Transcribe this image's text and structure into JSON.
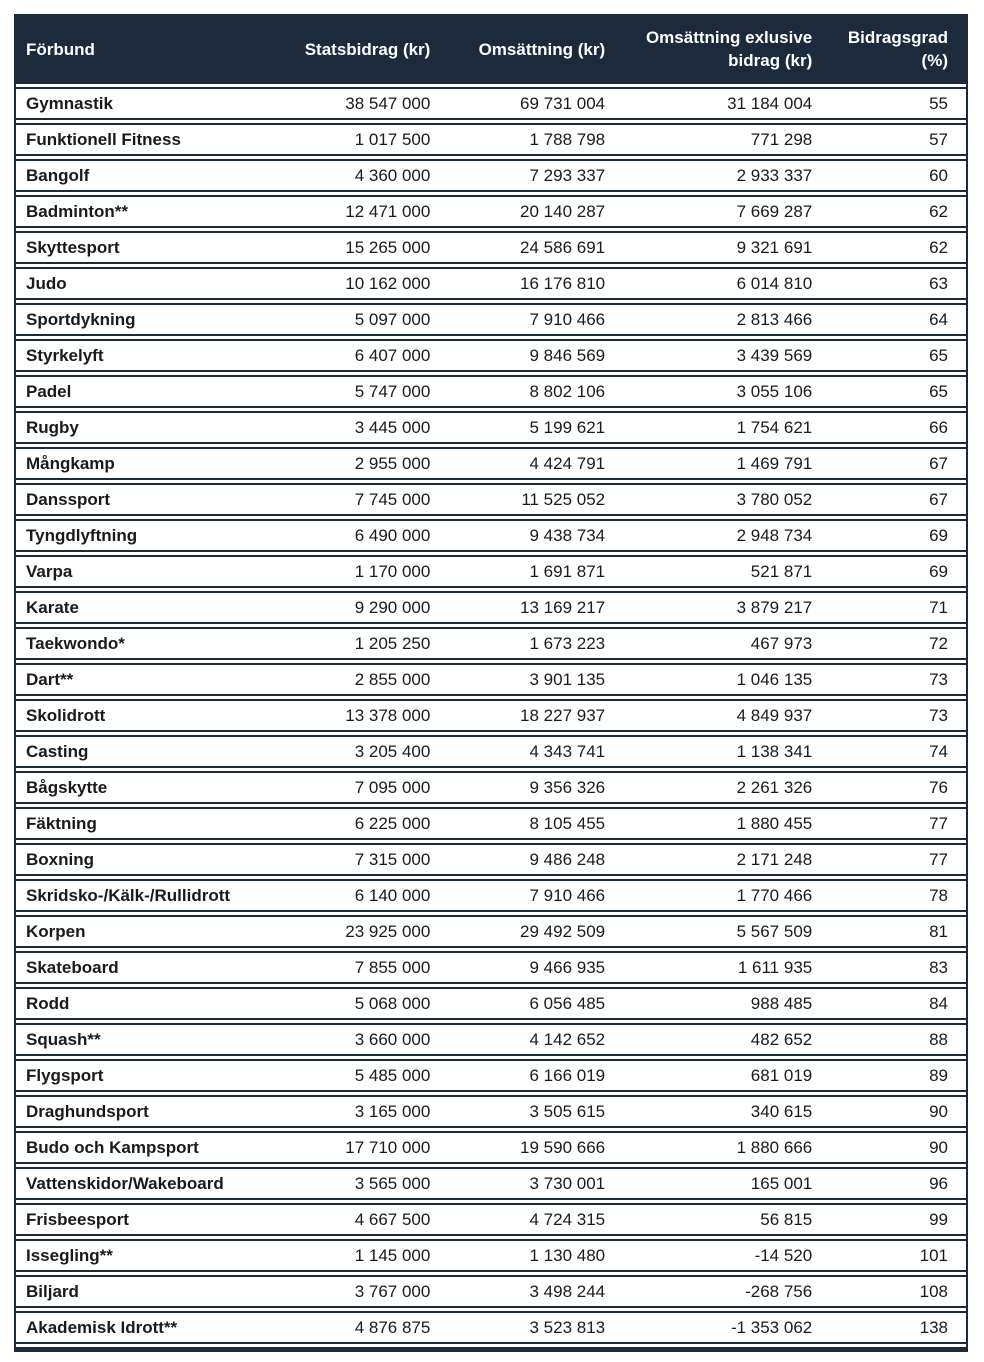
{
  "colors": {
    "header_bg": "#1c2a3c",
    "border": "#1c2a3c",
    "row_bg": "#ffffff",
    "header_text": "#ffffff",
    "body_text": "#1a1a1a"
  },
  "table": {
    "columns": [
      {
        "id": "forbund",
        "label": "Förbund"
      },
      {
        "id": "statsbidrag",
        "label": "Statsbidrag (kr)"
      },
      {
        "id": "omsattning",
        "label": "Omsättning (kr)"
      },
      {
        "id": "omsattning-exlusive-bidrag",
        "label": "Omsättning exlusive bidrag (kr)"
      },
      {
        "id": "bidragsgrad",
        "label": "Bidragsgrad (%)"
      }
    ],
    "rows": [
      [
        "Gymnastik",
        "38 547 000",
        "69 731 004",
        "31 184 004",
        "55"
      ],
      [
        "Funktionell Fitness",
        "1 017 500",
        "1 788 798",
        "771 298",
        "57"
      ],
      [
        "Bangolf",
        "4 360 000",
        "7 293 337",
        "2 933 337",
        "60"
      ],
      [
        "Badminton**",
        "12 471 000",
        "20 140 287",
        "7 669 287",
        "62"
      ],
      [
        "Skyttesport",
        "15 265 000",
        "24 586 691",
        "9 321 691",
        "62"
      ],
      [
        "Judo",
        "10 162 000",
        "16 176 810",
        "6 014 810",
        "63"
      ],
      [
        "Sportdykning",
        "5 097 000",
        "7 910 466",
        "2 813 466",
        "64"
      ],
      [
        "Styrkelyft",
        "6 407 000",
        "9 846 569",
        "3 439 569",
        "65"
      ],
      [
        "Padel",
        "5 747 000",
        "8 802 106",
        "3 055 106",
        "65"
      ],
      [
        "Rugby",
        "3 445 000",
        "5 199 621",
        "1 754 621",
        "66"
      ],
      [
        "Mångkamp",
        "2 955 000",
        "4 424 791",
        "1 469 791",
        "67"
      ],
      [
        "Danssport",
        "7 745 000",
        "11 525 052",
        "3 780 052",
        "67"
      ],
      [
        "Tyngdlyftning",
        "6 490 000",
        "9 438 734",
        "2 948 734",
        "69"
      ],
      [
        "Varpa",
        "1 170 000",
        "1 691 871",
        "521 871",
        "69"
      ],
      [
        "Karate",
        "9 290 000",
        "13 169 217",
        "3 879 217",
        "71"
      ],
      [
        "Taekwondo*",
        "1 205 250",
        "1 673 223",
        "467 973",
        "72"
      ],
      [
        "Dart**",
        "2 855 000",
        "3 901 135",
        "1 046 135",
        "73"
      ],
      [
        "Skolidrott",
        "13 378 000",
        "18 227 937",
        "4 849 937",
        "73"
      ],
      [
        "Casting",
        "3 205 400",
        "4 343 741",
        "1 138 341",
        "74"
      ],
      [
        "Bågskytte",
        "7 095 000",
        "9 356 326",
        "2 261 326",
        "76"
      ],
      [
        "Fäktning",
        "6 225 000",
        "8 105 455",
        "1 880 455",
        "77"
      ],
      [
        "Boxning",
        "7 315 000",
        "9 486 248",
        "2 171 248",
        "77"
      ],
      [
        "Skridsko-/Kälk-/Rullidrott",
        "6 140 000",
        "7 910 466",
        "1 770 466",
        "78"
      ],
      [
        "Korpen",
        "23 925 000",
        "29 492 509",
        "5 567 509",
        "81"
      ],
      [
        "Skateboard",
        "7 855 000",
        "9 466 935",
        "1 611 935",
        "83"
      ],
      [
        "Rodd",
        "5 068 000",
        "6 056 485",
        "988 485",
        "84"
      ],
      [
        "Squash**",
        "3 660 000",
        "4 142 652",
        "482 652",
        "88"
      ],
      [
        "Flygsport",
        "5 485 000",
        "6 166 019",
        "681 019",
        "89"
      ],
      [
        "Draghundsport",
        "3 165 000",
        "3 505 615",
        "340 615",
        "90"
      ],
      [
        "Budo och Kampsport",
        "17 710 000",
        "19 590 666",
        "1 880 666",
        "90"
      ],
      [
        "Vattenskidor/Wakeboard",
        "3 565 000",
        "3 730 001",
        "165 001",
        "96"
      ],
      [
        "Frisbeesport",
        "4 667 500",
        "4 724 315",
        "56 815",
        "99"
      ],
      [
        "Issegling**",
        "1 145 000",
        "1 130 480",
        "-14 520",
        "101"
      ],
      [
        "Biljard",
        "3 767 000",
        "3 498 244",
        "-268 756",
        "108"
      ],
      [
        "Akademisk Idrott**",
        "4 876 875",
        "3 523 813",
        "-1 353 062",
        "138"
      ]
    ]
  }
}
